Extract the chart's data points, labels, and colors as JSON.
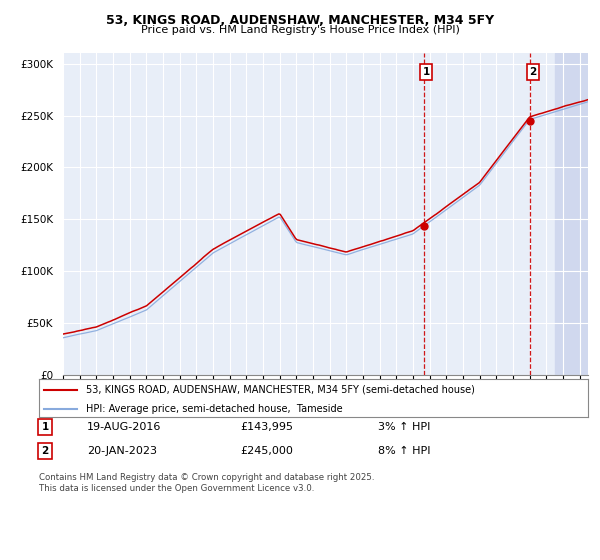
{
  "title": "53, KINGS ROAD, AUDENSHAW, MANCHESTER, M34 5FY",
  "subtitle": "Price paid vs. HM Land Registry's House Price Index (HPI)",
  "ylabel_ticks": [
    "£0",
    "£50K",
    "£100K",
    "£150K",
    "£200K",
    "£250K",
    "£300K"
  ],
  "ytick_values": [
    0,
    50000,
    100000,
    150000,
    200000,
    250000,
    300000
  ],
  "ylim": [
    0,
    310000
  ],
  "xlim_start": 1995.0,
  "xlim_end": 2026.5,
  "hpi_color": "#88aadd",
  "price_color": "#cc0000",
  "marker1_date": 2016.63,
  "marker1_price": 143995,
  "marker1_label": "1",
  "marker1_date_str": "19-AUG-2016",
  "marker1_price_str": "£143,995",
  "marker1_pct": "3% ↑ HPI",
  "marker2_date": 2023.05,
  "marker2_price": 245000,
  "marker2_label": "2",
  "marker2_date_str": "20-JAN-2023",
  "marker2_price_str": "£245,000",
  "marker2_pct": "8% ↑ HPI",
  "legend_line1": "53, KINGS ROAD, AUDENSHAW, MANCHESTER, M34 5FY (semi-detached house)",
  "legend_line2": "HPI: Average price, semi-detached house,  Tameside",
  "footnote": "Contains HM Land Registry data © Crown copyright and database right 2025.\nThis data is licensed under the Open Government Licence v3.0.",
  "bg_color": "#ffffff",
  "plot_bg_color": "#e8eef8",
  "grid_color": "#ffffff"
}
